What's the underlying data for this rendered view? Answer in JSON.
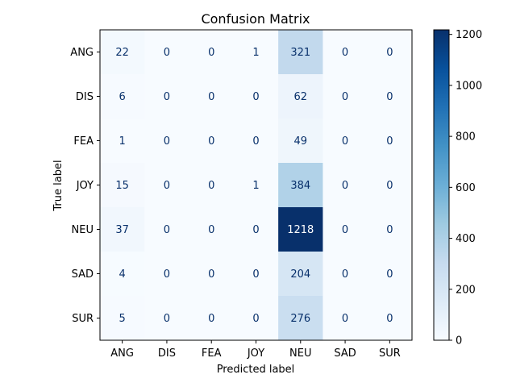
{
  "chart_data": {
    "type": "heatmap",
    "title": "Confusion Matrix",
    "xlabel": "Predicted label",
    "ylabel": "True label",
    "x_categories": [
      "ANG",
      "DIS",
      "FEA",
      "JOY",
      "NEU",
      "SAD",
      "SUR"
    ],
    "y_categories": [
      "ANG",
      "DIS",
      "FEA",
      "JOY",
      "NEU",
      "SAD",
      "SUR"
    ],
    "values": [
      [
        22,
        0,
        0,
        1,
        321,
        0,
        0
      ],
      [
        6,
        0,
        0,
        0,
        62,
        0,
        0
      ],
      [
        1,
        0,
        0,
        0,
        49,
        0,
        0
      ],
      [
        15,
        0,
        0,
        1,
        384,
        0,
        0
      ],
      [
        37,
        0,
        0,
        0,
        1218,
        0,
        0
      ],
      [
        4,
        0,
        0,
        0,
        204,
        0,
        0
      ],
      [
        5,
        0,
        0,
        0,
        276,
        0,
        0
      ]
    ],
    "colormap": "Blues",
    "vmin": 0,
    "vmax": 1218,
    "colorbar_ticks": [
      "0",
      "200",
      "400",
      "600",
      "800",
      "1000",
      "1200"
    ],
    "text_color_light": "#ffffff",
    "text_color_dark": "#08306b"
  }
}
